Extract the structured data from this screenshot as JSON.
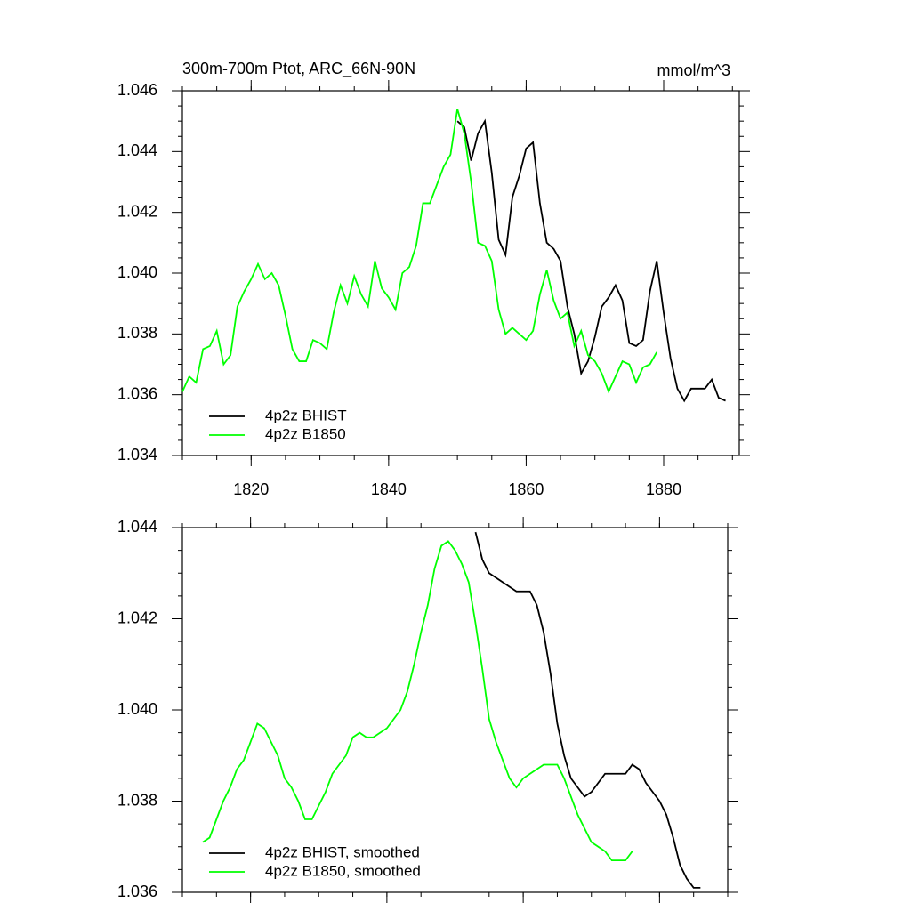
{
  "chart_data": [
    {
      "type": "line",
      "title": "300m-700m Ptot, ARC_66N-90N",
      "units": "mmol/m^3",
      "xlim": [
        1810,
        1891
      ],
      "xticks": [
        1820,
        1840,
        1860,
        1880
      ],
      "ylim": [
        1.034,
        1.046
      ],
      "yticks": [
        1.034,
        1.036,
        1.038,
        {
          "value": 1.04,
          "label": "1.040"
        },
        1.042,
        1.044,
        1.046
      ],
      "legend": "lower left",
      "series": [
        {
          "name": "4p2z BHIST",
          "color": "#000000",
          "x": [
            1850,
            1851,
            1852,
            1853,
            1854,
            1855,
            1856,
            1857,
            1858,
            1859,
            1860,
            1861,
            1862,
            1863,
            1864,
            1865,
            1866,
            1867,
            1868,
            1869,
            1870,
            1871,
            1872,
            1873,
            1874,
            1875,
            1876,
            1877,
            1878,
            1879,
            1880,
            1881,
            1882,
            1883,
            1884,
            1885,
            1886,
            1887,
            1888,
            1889
          ],
          "values": [
            1.045,
            1.0448,
            1.0437,
            1.0446,
            1.045,
            1.0433,
            1.0411,
            1.0406,
            1.0425,
            1.0432,
            1.0441,
            1.0443,
            1.0423,
            1.041,
            1.0408,
            1.0404,
            1.0389,
            1.038,
            1.0367,
            1.0371,
            1.0379,
            1.0389,
            1.0392,
            1.0396,
            1.0391,
            1.0377,
            1.0376,
            1.0378,
            1.0394,
            1.0404,
            1.0387,
            1.0372,
            1.0362,
            1.0358,
            1.0362,
            1.0362,
            1.0362,
            1.0365,
            1.0359,
            1.0358
          ]
        },
        {
          "name": "4p2z B1850",
          "color": "#00ff00",
          "x": [
            1810,
            1811,
            1812,
            1813,
            1814,
            1815,
            1816,
            1817,
            1818,
            1819,
            1820,
            1821,
            1822,
            1823,
            1824,
            1825,
            1826,
            1827,
            1828,
            1829,
            1830,
            1831,
            1832,
            1833,
            1834,
            1835,
            1836,
            1837,
            1838,
            1839,
            1840,
            1841,
            1842,
            1843,
            1844,
            1845,
            1846,
            1847,
            1848,
            1849,
            1850,
            1851,
            1852,
            1853,
            1854,
            1855,
            1856,
            1857,
            1858,
            1859,
            1860,
            1861,
            1862,
            1863,
            1864,
            1865,
            1866,
            1867,
            1868,
            1869,
            1870,
            1871,
            1872,
            1873,
            1874,
            1875,
            1876,
            1877,
            1878,
            1879
          ],
          "values": [
            1.0361,
            1.0366,
            1.0364,
            1.0375,
            1.0376,
            1.0381,
            1.037,
            1.0373,
            1.0389,
            1.0394,
            1.0398,
            1.0403,
            1.0398,
            1.04,
            1.0396,
            1.0386,
            1.0375,
            1.0371,
            1.0371,
            1.0378,
            1.0377,
            1.0375,
            1.0387,
            1.0396,
            1.039,
            1.0399,
            1.0393,
            1.0389,
            1.0404,
            1.0395,
            1.0392,
            1.0388,
            1.04,
            1.0402,
            1.0409,
            1.0423,
            1.0423,
            1.0429,
            1.0435,
            1.0439,
            1.0454,
            1.0446,
            1.043,
            1.041,
            1.0409,
            1.0404,
            1.0388,
            1.038,
            1.0382,
            1.038,
            1.0378,
            1.0381,
            1.0393,
            1.0401,
            1.0391,
            1.0385,
            1.0387,
            1.0376,
            1.0381,
            1.0373,
            1.0371,
            1.0367,
            1.0361,
            1.0366,
            1.0371,
            1.037,
            1.0364,
            1.0369,
            1.037,
            1.0374
          ]
        }
      ]
    },
    {
      "type": "line",
      "xlim": [
        1810,
        1890
      ],
      "xticks": [
        1820,
        1840,
        1860,
        1880
      ],
      "xtick_labels": false,
      "ylim": [
        1.036,
        1.044
      ],
      "yticks": [
        1.036,
        1.038,
        {
          "value": 1.04,
          "label": "1.040"
        },
        1.042,
        1.044
      ],
      "legend": "lower left",
      "series": [
        {
          "name": "4p2z BHIST, smoothed",
          "color": "#000000",
          "x": [
            1853,
            1854,
            1855,
            1856,
            1857,
            1858,
            1859,
            1860,
            1861,
            1862,
            1863,
            1864,
            1865,
            1866,
            1867,
            1868,
            1869,
            1870,
            1871,
            1872,
            1873,
            1874,
            1875,
            1876,
            1877,
            1878,
            1879,
            1880,
            1881,
            1882,
            1883,
            1884,
            1885,
            1886
          ],
          "values": [
            1.0439,
            1.0433,
            1.043,
            1.0429,
            1.0428,
            1.0427,
            1.0426,
            1.0426,
            1.0426,
            1.0423,
            1.0417,
            1.0408,
            1.0397,
            1.039,
            1.0385,
            1.0383,
            1.0381,
            1.0382,
            1.0384,
            1.0386,
            1.0386,
            1.0386,
            1.0386,
            1.0388,
            1.0387,
            1.0384,
            1.0382,
            1.038,
            1.0377,
            1.0372,
            1.0366,
            1.0363,
            1.0361,
            1.0361
          ]
        },
        {
          "name": "4p2z B1850, smoothed",
          "color": "#00ff00",
          "x": [
            1813,
            1814,
            1815,
            1816,
            1817,
            1818,
            1819,
            1820,
            1821,
            1822,
            1823,
            1824,
            1825,
            1826,
            1827,
            1828,
            1829,
            1830,
            1831,
            1832,
            1833,
            1834,
            1835,
            1836,
            1837,
            1838,
            1839,
            1840,
            1841,
            1842,
            1843,
            1844,
            1845,
            1846,
            1847,
            1848,
            1849,
            1850,
            1851,
            1852,
            1853,
            1854,
            1855,
            1856,
            1857,
            1858,
            1859,
            1860,
            1861,
            1862,
            1863,
            1864,
            1865,
            1866,
            1867,
            1868,
            1869,
            1870,
            1871,
            1872,
            1873,
            1874,
            1875,
            1876
          ],
          "values": [
            1.0371,
            1.0372,
            1.0376,
            1.038,
            1.0383,
            1.0387,
            1.0389,
            1.0393,
            1.0397,
            1.0396,
            1.0393,
            1.039,
            1.0385,
            1.0383,
            1.038,
            1.0376,
            1.0376,
            1.0379,
            1.0382,
            1.0386,
            1.0388,
            1.039,
            1.0394,
            1.0395,
            1.0394,
            1.0394,
            1.0395,
            1.0396,
            1.0398,
            1.04,
            1.0404,
            1.041,
            1.0417,
            1.0423,
            1.0431,
            1.0436,
            1.0437,
            1.0435,
            1.0432,
            1.0428,
            1.0419,
            1.0409,
            1.0398,
            1.0393,
            1.0389,
            1.0385,
            1.0383,
            1.0385,
            1.0386,
            1.0387,
            1.0388,
            1.0388,
            1.0388,
            1.0385,
            1.0381,
            1.0377,
            1.0374,
            1.0371,
            1.037,
            1.0369,
            1.0367,
            1.0367,
            1.0367,
            1.0369
          ]
        }
      ]
    }
  ]
}
